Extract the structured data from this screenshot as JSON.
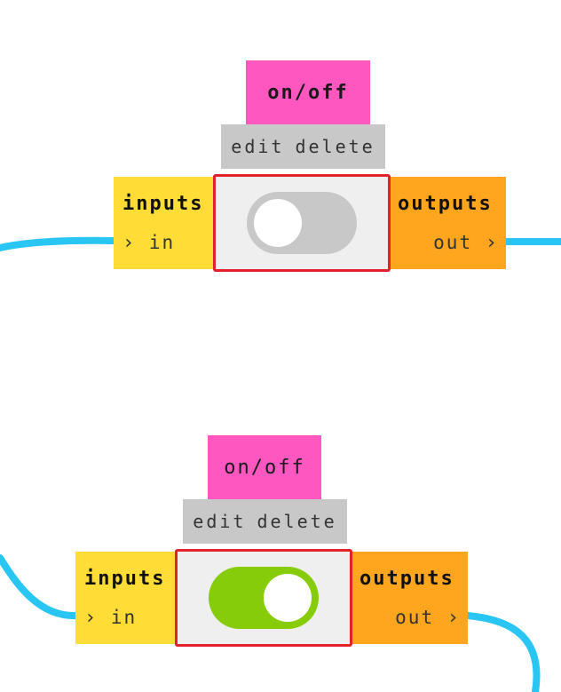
{
  "nodes": [
    {
      "title": "on/off",
      "edit_label": "edit",
      "delete_label": "delete",
      "inputs_heading": "inputs",
      "input_port": "in",
      "outputs_heading": "outputs",
      "output_port": "out",
      "toggle_state": "off"
    },
    {
      "title": "on/off",
      "edit_label": "edit",
      "delete_label": "delete",
      "inputs_heading": "inputs",
      "input_port": "in",
      "outputs_heading": "outputs",
      "output_port": "out",
      "toggle_state": "on"
    }
  ],
  "colors": {
    "wire": "#29c6f3",
    "title_tab": "#ff57c0",
    "edit_bar": "#c8c8c8",
    "inputs": "#ffdc36",
    "outputs": "#ffa51e",
    "body_border": "#e4202b",
    "toggle_off": "#c8c8c8",
    "toggle_on": "#86cc08"
  },
  "icons": {
    "port_chevron": "chevron-right-icon"
  }
}
